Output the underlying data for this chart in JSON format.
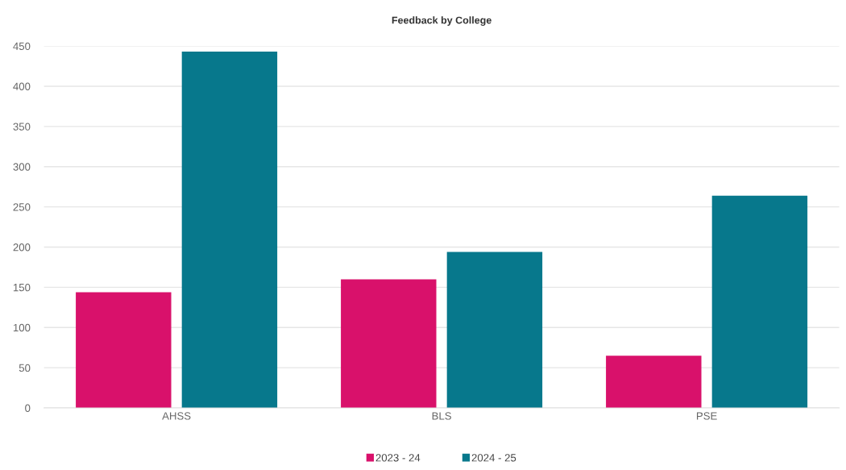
{
  "chart_data": {
    "type": "bar",
    "title": "Feedback by College",
    "categories": [
      "AHSS",
      "BLS",
      "PSE"
    ],
    "series": [
      {
        "name": "2023 - 24",
        "color": "#d9116b",
        "values": [
          144,
          160,
          65
        ]
      },
      {
        "name": "2024 - 25",
        "color": "#07788c",
        "values": [
          443,
          194,
          264
        ]
      }
    ],
    "ylim": [
      0,
      450
    ],
    "yticks": [
      0,
      50,
      100,
      150,
      200,
      250,
      300,
      350,
      400,
      450
    ],
    "grid": "y",
    "legend": "bottom"
  }
}
